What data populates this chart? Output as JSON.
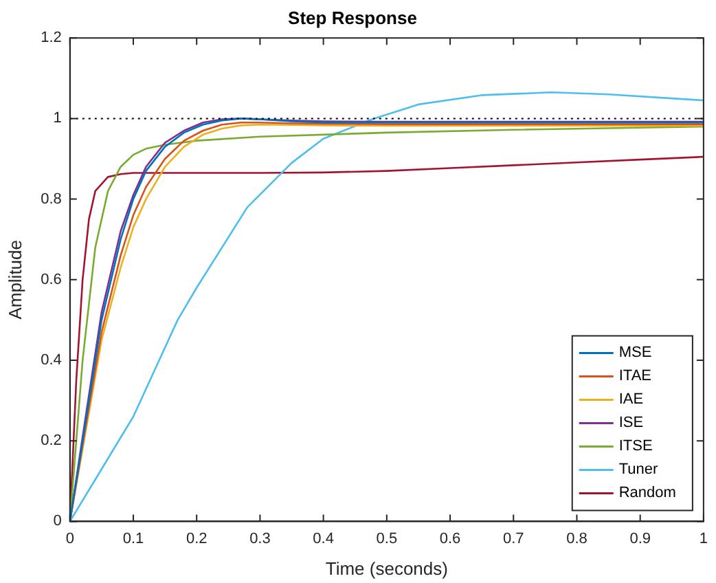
{
  "chart_data": {
    "type": "line",
    "title": "Step Response",
    "xlabel": "Time (seconds)",
    "ylabel": "Amplitude",
    "xlim": [
      0,
      1
    ],
    "xticks": [
      0,
      0.1,
      0.2,
      0.3,
      0.4,
      0.5,
      0.6,
      0.7,
      0.8,
      0.9,
      1
    ],
    "ylim": [
      0,
      1.2
    ],
    "yticks": [
      0,
      0.2,
      0.4,
      0.6,
      0.8,
      1,
      1.2
    ],
    "grid": false,
    "legend": "bottom right",
    "marker": "none",
    "line_style": "solid",
    "ref_lines": [
      {
        "axis": "y",
        "value": 1,
        "color": "#000000",
        "line_style": "dotted"
      }
    ],
    "series": [
      {
        "name": "MSE",
        "color": "#0072bd",
        "x": [
          0,
          0.02,
          0.05,
          0.08,
          0.1,
          0.12,
          0.15,
          0.18,
          0.21,
          0.24,
          0.27,
          0.3,
          0.35,
          0.4,
          0.5,
          0.6,
          0.8,
          1
        ],
        "values": [
          0,
          0.2,
          0.5,
          0.7,
          0.8,
          0.87,
          0.93,
          0.965,
          0.985,
          0.995,
          1.0,
          0.998,
          0.993,
          0.99,
          0.99,
          0.99,
          0.99,
          0.99
        ]
      },
      {
        "name": "ITAE",
        "color": "#d95319",
        "x": [
          0,
          0.02,
          0.05,
          0.08,
          0.1,
          0.12,
          0.15,
          0.18,
          0.21,
          0.24,
          0.27,
          0.3,
          0.35,
          0.4,
          0.5,
          0.6,
          0.8,
          1
        ],
        "values": [
          0,
          0.19,
          0.47,
          0.66,
          0.76,
          0.83,
          0.9,
          0.945,
          0.97,
          0.985,
          0.99,
          0.99,
          0.988,
          0.987,
          0.986,
          0.986,
          0.986,
          0.986
        ]
      },
      {
        "name": "IAE",
        "color": "#edb120",
        "x": [
          0,
          0.02,
          0.05,
          0.08,
          0.1,
          0.12,
          0.15,
          0.18,
          0.21,
          0.24,
          0.27,
          0.3,
          0.35,
          0.4,
          0.5,
          0.6,
          0.8,
          1
        ],
        "values": [
          0,
          0.18,
          0.45,
          0.63,
          0.73,
          0.8,
          0.88,
          0.93,
          0.96,
          0.975,
          0.983,
          0.985,
          0.984,
          0.983,
          0.982,
          0.982,
          0.982,
          0.982
        ]
      },
      {
        "name": "ISE",
        "color": "#7e2f8e",
        "x": [
          0,
          0.02,
          0.05,
          0.08,
          0.1,
          0.12,
          0.15,
          0.18,
          0.21,
          0.24,
          0.27,
          0.3,
          0.35,
          0.4,
          0.5,
          0.6,
          0.8,
          1
        ],
        "values": [
          0,
          0.21,
          0.52,
          0.72,
          0.81,
          0.88,
          0.94,
          0.97,
          0.99,
          0.998,
          1.0,
          0.998,
          0.995,
          0.993,
          0.992,
          0.992,
          0.992,
          0.992
        ]
      },
      {
        "name": "ITSE",
        "color": "#77ac30",
        "x": [
          0,
          0.02,
          0.04,
          0.06,
          0.08,
          0.1,
          0.12,
          0.15,
          0.2,
          0.3,
          0.5,
          0.7,
          1
        ],
        "values": [
          0,
          0.4,
          0.68,
          0.82,
          0.88,
          0.91,
          0.925,
          0.935,
          0.945,
          0.955,
          0.965,
          0.972,
          0.98
        ]
      },
      {
        "name": "Tuner",
        "color": "#4dbeee",
        "x": [
          0,
          0.05,
          0.1,
          0.17,
          0.2,
          0.28,
          0.35,
          0.4,
          0.48,
          0.55,
          0.65,
          0.76,
          0.85,
          0.95,
          1
        ],
        "values": [
          0,
          0.13,
          0.26,
          0.5,
          0.58,
          0.78,
          0.89,
          0.95,
          1.0,
          1.035,
          1.058,
          1.065,
          1.06,
          1.05,
          1.045
        ]
      },
      {
        "name": "Random",
        "color": "#a2142f",
        "x": [
          0,
          0.01,
          0.02,
          0.03,
          0.04,
          0.06,
          0.08,
          0.1,
          0.2,
          0.3,
          0.4,
          0.5,
          0.6,
          0.7,
          0.8,
          0.9,
          1
        ],
        "values": [
          0,
          0.35,
          0.6,
          0.75,
          0.82,
          0.855,
          0.862,
          0.865,
          0.865,
          0.865,
          0.866,
          0.87,
          0.877,
          0.884,
          0.891,
          0.898,
          0.905
        ]
      }
    ]
  }
}
